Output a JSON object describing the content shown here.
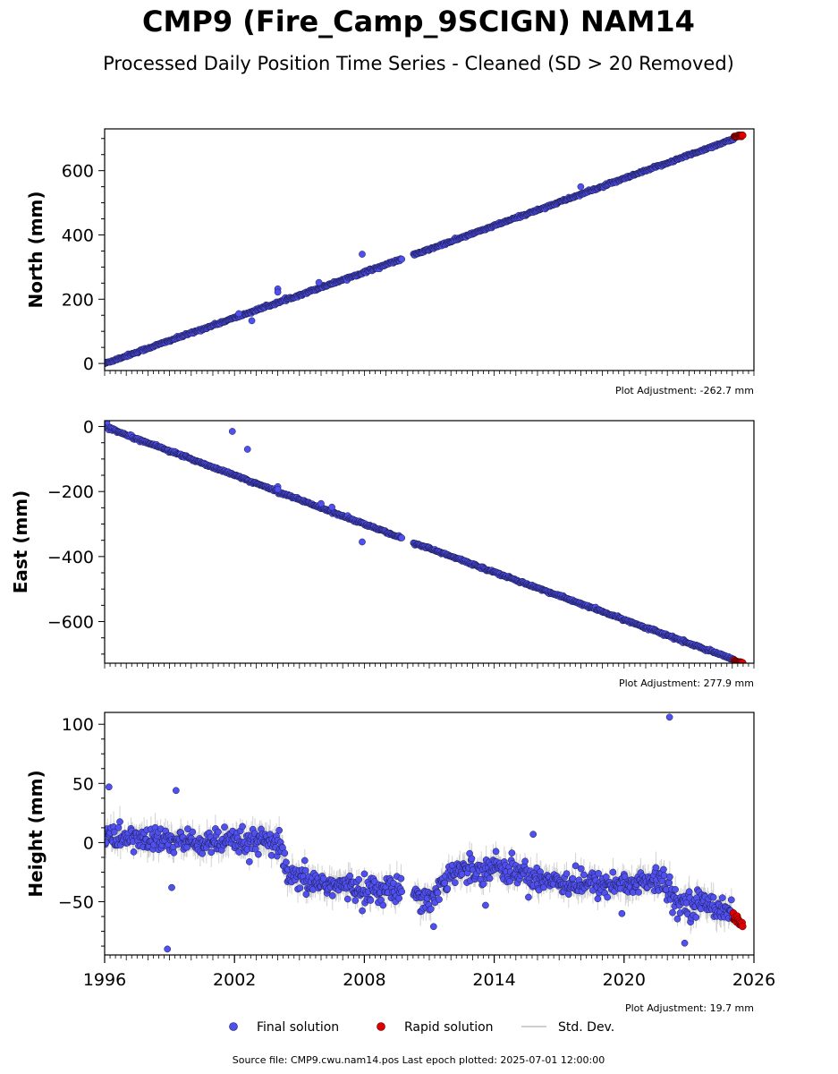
{
  "title": "CMP9 (Fire_Camp_9SCIGN) NAM14",
  "subtitle": "Processed Daily Position Time Series - Cleaned (SD > 20 Removed)",
  "colors": {
    "final": "#5050f0",
    "final_edge": "#1a1a4a",
    "rapid": "#e00000",
    "std_dev": "#bfbfbf"
  },
  "legend": {
    "placement": "bottom-center",
    "final_label": "Final solution",
    "rapid_label": "Rapid solution",
    "std_label": "Std. Dev."
  },
  "footer": "Source file: CMP9.cwu.nam14.pos  Last epoch plotted: 2025-07-01 12:00:00",
  "chart_data": [
    {
      "type": "scatter",
      "ylabel": "North (mm)",
      "adjustment": "Plot Adjustment: -262.7 mm",
      "xlim": [
        1996,
        2026
      ],
      "ylim": [
        -22,
        730
      ],
      "yticks": [
        0,
        200,
        400,
        600
      ],
      "ytick_labels": [
        "0",
        "200",
        "400",
        "600"
      ],
      "grid": false,
      "gap": [
        2009.75,
        2010.25
      ],
      "series": [
        {
          "kind": "final",
          "x": [
            1996,
            2009.6,
            2010.3,
            2025.1
          ],
          "y": [
            0,
            322,
            338,
            700
          ],
          "scatter": 3,
          "sd": 2
        },
        {
          "kind": "rapid",
          "x": [
            2025.1,
            2025.5
          ],
          "y": [
            705,
            710
          ],
          "scatter": 2,
          "sd": 0
        }
      ],
      "outliers": [
        {
          "x": 2002.2,
          "y": 155
        },
        {
          "x": 2002.8,
          "y": 133
        },
        {
          "x": 2004.0,
          "y": 232
        },
        {
          "x": 2004.0,
          "y": 222
        },
        {
          "x": 2005.9,
          "y": 252
        },
        {
          "x": 2007.9,
          "y": 340
        },
        {
          "x": 2018.0,
          "y": 550
        }
      ]
    },
    {
      "type": "scatter",
      "ylabel": "East (mm)",
      "adjustment": "Plot Adjustment: 277.9 mm",
      "xlim": [
        1996,
        2026
      ],
      "ylim": [
        -728,
        18
      ],
      "yticks": [
        -600,
        -400,
        -200,
        0
      ],
      "ytick_labels": [
        "−600",
        "−400",
        "−200",
        "0"
      ],
      "grid": false,
      "gap": [
        2009.75,
        2010.25
      ],
      "series": [
        {
          "kind": "final",
          "x": [
            1996,
            2009.6,
            2010.3,
            2025.1
          ],
          "y": [
            0,
            -340,
            -358,
            -718
          ],
          "scatter": 3,
          "sd": 2
        },
        {
          "kind": "rapid",
          "x": [
            2025.1,
            2025.5
          ],
          "y": [
            -722,
            -727
          ],
          "scatter": 2,
          "sd": 0
        }
      ],
      "outliers": [
        {
          "x": 1996.1,
          "y": 14
        },
        {
          "x": 2001.9,
          "y": -15
        },
        {
          "x": 2002.6,
          "y": -70
        },
        {
          "x": 2004.0,
          "y": -185
        },
        {
          "x": 2004.0,
          "y": -193
        },
        {
          "x": 2006.0,
          "y": -237
        },
        {
          "x": 2006.5,
          "y": -248
        },
        {
          "x": 2007.9,
          "y": -355
        }
      ]
    },
    {
      "type": "scatter",
      "ylabel": "Height (mm)",
      "adjustment": "Plot Adjustment: 19.7 mm",
      "xlim": [
        1996,
        2026
      ],
      "ylim": [
        -95,
        110
      ],
      "yticks": [
        -50,
        0,
        50,
        100
      ],
      "ytick_labels": [
        "−50",
        "0",
        "50",
        "100"
      ],
      "xticks": [
        1996,
        2002,
        2008,
        2014,
        2020,
        2026
      ],
      "xtick_labels": [
        "1996",
        "2002",
        "2008",
        "2014",
        "2020",
        "2026"
      ],
      "grid": false,
      "gap": [
        2009.75,
        2010.25
      ],
      "series": [
        {
          "kind": "final",
          "x": [
            1996,
            2000,
            2004.0,
            2004.5,
            2008,
            2009.6,
            2010.3,
            2011,
            2012,
            2014,
            2016,
            2018,
            2020,
            2021.8,
            2022.3,
            2024,
            2025.0
          ],
          "y": [
            5,
            0,
            0,
            -30,
            -40,
            -40,
            -40,
            -50,
            -25,
            -20,
            -30,
            -35,
            -35,
            -32,
            -50,
            -52,
            -58
          ],
          "scatter": 9,
          "sd": 9
        },
        {
          "kind": "rapid",
          "x": [
            2025.05,
            2025.5
          ],
          "y": [
            -64,
            -68
          ],
          "scatter": 3,
          "sd": 0
        }
      ],
      "outliers": [
        {
          "x": 1996.2,
          "y": 47
        },
        {
          "x": 1999.3,
          "y": 44
        },
        {
          "x": 1998.9,
          "y": -90
        },
        {
          "x": 1999.1,
          "y": -38
        },
        {
          "x": 2022.1,
          "y": 106
        },
        {
          "x": 2015.8,
          "y": 7
        },
        {
          "x": 2013.6,
          "y": -53
        },
        {
          "x": 2019.9,
          "y": -60
        },
        {
          "x": 2022.8,
          "y": -85
        },
        {
          "x": 2011.2,
          "y": -71
        }
      ]
    }
  ]
}
